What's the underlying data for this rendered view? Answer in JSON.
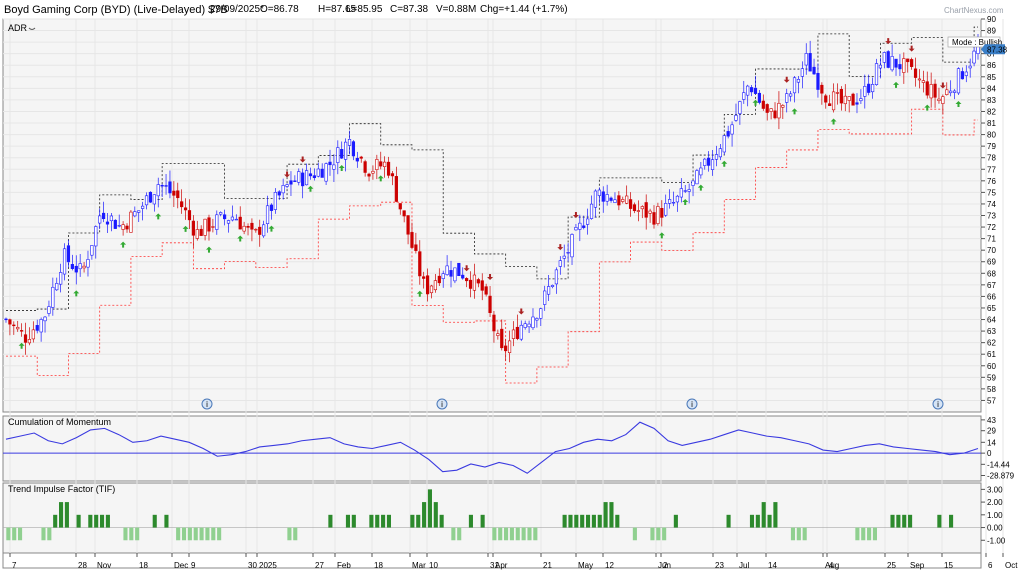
{
  "header": {
    "title": "Boyd Gaming Corp (BYD) (Live-Delayed) $7B",
    "date": "29/09/2025*",
    "open": "O=86.78",
    "high": "H=87.65",
    "low": "L=85.95",
    "close": "C=87.38",
    "volume": "V=0.88M",
    "change": "Chg=+1.44 (+1.7%)",
    "watermark": "ChartNexus.com"
  },
  "colors": {
    "bull": "#1a1aff",
    "bear": "#cc0000",
    "stop_upper": "#222222",
    "stop_lower": "#ff3333",
    "momentum": "#3a3ae0",
    "tif": "#2d8a2d",
    "tif_neg": "#90d090",
    "arrow_up": "#33aa33",
    "arrow_down": "#aa2222",
    "price_tag": "#3a7fc8"
  },
  "chart_data": [
    {
      "type": "candlestick",
      "title": "ADR",
      "mode_label": "Mode : Bullish",
      "last_price_label": "87.38",
      "ylim": [
        56,
        90
      ],
      "y_ticks": [
        57,
        58,
        59,
        60,
        61,
        62,
        63,
        64,
        65,
        66,
        67,
        68,
        69,
        70,
        71,
        72,
        73,
        74,
        75,
        76,
        77,
        78,
        79,
        80,
        81,
        82,
        83,
        84,
        85,
        86,
        87,
        88,
        89,
        90
      ],
      "date_ticks": [
        "7",
        "28",
        "Nov",
        "18",
        "Dec",
        "9",
        "30",
        "2025",
        "27",
        "Feb",
        "18",
        "Mar",
        "10",
        "31",
        "Apr",
        "21",
        "May",
        "12",
        "Jun",
        "2",
        "23",
        "Jul",
        "14",
        "Aug",
        "4",
        "25",
        "Sep",
        "15",
        "6",
        "Oct"
      ],
      "close_path": [
        {
          "x": "07-Oct-2024",
          "y": 64.0
        },
        {
          "x": "14-Oct-2024",
          "y": 62.5
        },
        {
          "x": "21-Oct-2024",
          "y": 64.2
        },
        {
          "x": "28-Oct-2024",
          "y": 69.5
        },
        {
          "x": "04-Nov-2024",
          "y": 68.0
        },
        {
          "x": "11-Nov-2024",
          "y": 73.5
        },
        {
          "x": "18-Nov-2024",
          "y": 72.0
        },
        {
          "x": "25-Nov-2024",
          "y": 73.5
        },
        {
          "x": "02-Dec-2024",
          "y": 75.8
        },
        {
          "x": "09-Dec-2024",
          "y": 74.5
        },
        {
          "x": "16-Dec-2024",
          "y": 71.5
        },
        {
          "x": "23-Dec-2024",
          "y": 72.5
        },
        {
          "x": "30-Dec-2024",
          "y": 73.0
        },
        {
          "x": "06-Jan-2025",
          "y": 71.0
        },
        {
          "x": "13-Jan-2025",
          "y": 74.0
        },
        {
          "x": "20-Jan-2025",
          "y": 76.0
        },
        {
          "x": "27-Jan-2025",
          "y": 76.5
        },
        {
          "x": "03-Feb-2025",
          "y": 77.5
        },
        {
          "x": "10-Feb-2025",
          "y": 79.5
        },
        {
          "x": "17-Feb-2025",
          "y": 77.0
        },
        {
          "x": "24-Feb-2025",
          "y": 77.5
        },
        {
          "x": "03-Mar-2025",
          "y": 72.0
        },
        {
          "x": "10-Mar-2025",
          "y": 66.5
        },
        {
          "x": "17-Mar-2025",
          "y": 68.5
        },
        {
          "x": "24-Mar-2025",
          "y": 68.0
        },
        {
          "x": "31-Mar-2025",
          "y": 66.5
        },
        {
          "x": "07-Apr-2025",
          "y": 61.0
        },
        {
          "x": "14-Apr-2025",
          "y": 63.5
        },
        {
          "x": "21-Apr-2025",
          "y": 65.0
        },
        {
          "x": "28-Apr-2025",
          "y": 68.5
        },
        {
          "x": "05-May-2025",
          "y": 71.5
        },
        {
          "x": "12-May-2025",
          "y": 75.0
        },
        {
          "x": "19-May-2025",
          "y": 74.5
        },
        {
          "x": "26-May-2025",
          "y": 73.5
        },
        {
          "x": "02-Jun-2025",
          "y": 73.0
        },
        {
          "x": "09-Jun-2025",
          "y": 74.0
        },
        {
          "x": "16-Jun-2025",
          "y": 75.5
        },
        {
          "x": "23-Jun-2025",
          "y": 78.0
        },
        {
          "x": "30-Jun-2025",
          "y": 80.5
        },
        {
          "x": "07-Jul-2025",
          "y": 84.5
        },
        {
          "x": "14-Jul-2025",
          "y": 81.5
        },
        {
          "x": "21-Jul-2025",
          "y": 83.0
        },
        {
          "x": "28-Jul-2025",
          "y": 86.5
        },
        {
          "x": "04-Aug-2025",
          "y": 83.5
        },
        {
          "x": "11-Aug-2025",
          "y": 82.5
        },
        {
          "x": "18-Aug-2025",
          "y": 83.5
        },
        {
          "x": "25-Aug-2025",
          "y": 86.5
        },
        {
          "x": "01-Sep-2025",
          "y": 86.0
        },
        {
          "x": "08-Sep-2025",
          "y": 84.5
        },
        {
          "x": "15-Sep-2025",
          "y": 83.0
        },
        {
          "x": "22-Sep-2025",
          "y": 85.0
        },
        {
          "x": "29-Sep-2025",
          "y": 87.38
        }
      ]
    },
    {
      "type": "line",
      "title": "Cumulation of Momentum",
      "y_ticks": [
        43,
        29,
        14,
        0,
        -14.44,
        -28.879
      ],
      "y_tick_labels": [
        "43",
        "29",
        "14",
        "0",
        "-14.44",
        "-28.879"
      ],
      "ylim": [
        -36,
        48
      ],
      "values": [
        18,
        22,
        26,
        16,
        12,
        20,
        30,
        32,
        24,
        14,
        16,
        22,
        18,
        14,
        6,
        -4,
        -2,
        2,
        8,
        10,
        12,
        16,
        18,
        20,
        12,
        8,
        6,
        10,
        14,
        4,
        -8,
        -24,
        -22,
        -14,
        -18,
        -12,
        -16,
        -26,
        -12,
        2,
        6,
        14,
        18,
        16,
        24,
        40,
        32,
        16,
        10,
        14,
        18,
        24,
        30,
        26,
        22,
        20,
        16,
        12,
        4,
        2,
        6,
        10,
        12,
        8,
        6,
        4,
        2,
        -2,
        0,
        6
      ]
    },
    {
      "type": "bar",
      "title": "Trend Impulse Factor (TIF)",
      "y_ticks": [
        3.0,
        2.0,
        1.0,
        0.0,
        -1.0
      ],
      "y_tick_labels": [
        "3.00",
        "2.00",
        "1.00",
        "0.00",
        "-1.00"
      ],
      "ylim": [
        -2,
        3.5
      ],
      "values": [
        -1,
        -1,
        -1,
        0,
        0,
        0,
        -1,
        -1,
        1,
        2,
        2,
        0,
        1,
        0,
        1,
        1,
        1,
        1,
        0,
        0,
        -1,
        -1,
        -1,
        0,
        0,
        1,
        0,
        1,
        0,
        -1,
        -1,
        -1,
        -1,
        -1,
        -1,
        -1,
        -1,
        0,
        0,
        0,
        0,
        0,
        0,
        0,
        0,
        0,
        0,
        0,
        -1,
        -1,
        0,
        0,
        0,
        0,
        0,
        1,
        0,
        0,
        1,
        1,
        0,
        0,
        1,
        1,
        1,
        1,
        0,
        0,
        0,
        1,
        1,
        2,
        3,
        2,
        1,
        0,
        -1,
        -1,
        0,
        1,
        0,
        1,
        0,
        -1,
        -1,
        -1,
        -1,
        -1,
        -1,
        -1,
        -1,
        0,
        0,
        0,
        0,
        1,
        1,
        1,
        1,
        1,
        1,
        1,
        2,
        2,
        1,
        0,
        0,
        -1,
        0,
        0,
        -1,
        -1,
        -1,
        0,
        1,
        0,
        0,
        0,
        0,
        0,
        0,
        0,
        0,
        1,
        0,
        0,
        0,
        1,
        1,
        2,
        1,
        2,
        0,
        0,
        -1,
        -1,
        -1,
        0,
        0,
        0,
        0,
        0,
        0,
        0,
        0,
        -1,
        -1,
        -1,
        -1,
        0,
        0,
        1,
        1,
        1,
        1,
        0,
        0,
        0,
        0,
        1,
        0,
        1,
        0,
        0,
        0,
        0
      ]
    }
  ]
}
